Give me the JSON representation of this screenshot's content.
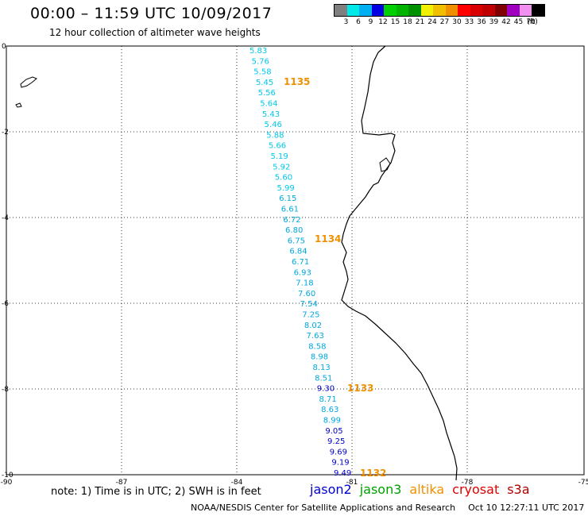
{
  "header": {
    "title": "00:00 – 11:59 UTC 10/09/2017",
    "subtitle": "12 hour collection of altimeter wave heights"
  },
  "legend": {
    "colors": [
      "#7f7f7f",
      "#00e8e8",
      "#00b0f0",
      "#0000e0",
      "#00d000",
      "#00b400",
      "#009000",
      "#f0f000",
      "#f0c000",
      "#f09000",
      "#ff0000",
      "#d80000",
      "#c00000",
      "#800000",
      "#a000c0",
      "#f090f0",
      "#000000"
    ],
    "labels": [
      "3",
      "6",
      "9",
      "12",
      "15",
      "18",
      "21",
      "24",
      "27",
      "30",
      "33",
      "36",
      "39",
      "42",
      "45",
      "70",
      "(ft)"
    ]
  },
  "map": {
    "x_tick_labels": [
      "-90",
      "-87",
      "-84",
      "-81",
      "-78",
      "-75"
    ],
    "y_tick_labels": [
      "0",
      "-2",
      "-4",
      "-6",
      "-8",
      "-10"
    ],
    "time_labels": [
      "1135",
      "1134",
      "1133",
      "1132"
    ],
    "time_label_color": "#f09000",
    "track_points": [
      {
        "v": "5.83",
        "c": "#00c8e8"
      },
      {
        "v": "5.76",
        "c": "#00c8e8"
      },
      {
        "v": "5.58",
        "c": "#00c8e8"
      },
      {
        "v": "5.45",
        "c": "#00c8e8"
      },
      {
        "v": "5.56",
        "c": "#00c8e8"
      },
      {
        "v": "5.64",
        "c": "#00c8e8"
      },
      {
        "v": "5.43",
        "c": "#00c8e8"
      },
      {
        "v": "5.46",
        "c": "#00c8e8"
      },
      {
        "v": "5.88",
        "c": "#00c8e8"
      },
      {
        "v": "5.66",
        "c": "#00c8e8"
      },
      {
        "v": "5.19",
        "c": "#00c8e8"
      },
      {
        "v": "5.92",
        "c": "#00c8e8"
      },
      {
        "v": "5.60",
        "c": "#00c8e8"
      },
      {
        "v": "5.99",
        "c": "#00c8e8"
      },
      {
        "v": "6.15",
        "c": "#00a8e0"
      },
      {
        "v": "6.61",
        "c": "#00a8e0"
      },
      {
        "v": "6.72",
        "c": "#00a8e0"
      },
      {
        "v": "6.80",
        "c": "#00a8e0"
      },
      {
        "v": "6.75",
        "c": "#00a8e0"
      },
      {
        "v": "6.84",
        "c": "#00a8e0"
      },
      {
        "v": "6.71",
        "c": "#00a8e0"
      },
      {
        "v": "6.93",
        "c": "#00a8e0"
      },
      {
        "v": "7.18",
        "c": "#00a8e0"
      },
      {
        "v": "7.60",
        "c": "#00a8e0"
      },
      {
        "v": "7.54",
        "c": "#00a8e0"
      },
      {
        "v": "7.25",
        "c": "#00a8e0"
      },
      {
        "v": "8.02",
        "c": "#00a8e0"
      },
      {
        "v": "7.63",
        "c": "#00a8e0"
      },
      {
        "v": "8.58",
        "c": "#00a8e0"
      },
      {
        "v": "8.98",
        "c": "#00a8e0"
      },
      {
        "v": "8.13",
        "c": "#00a8e0"
      },
      {
        "v": "8.51",
        "c": "#00a8e0"
      },
      {
        "v": "9.30",
        "c": "#0000c8"
      },
      {
        "v": "8.71",
        "c": "#00a8e0"
      },
      {
        "v": "8.63",
        "c": "#00a8e0"
      },
      {
        "v": "8.99",
        "c": "#00a8e0"
      },
      {
        "v": "9.05",
        "c": "#0000c8"
      },
      {
        "v": "9.25",
        "c": "#0000c8"
      },
      {
        "v": "9.69",
        "c": "#0000c8"
      },
      {
        "v": "9.19",
        "c": "#0000c8"
      },
      {
        "v": "9.49",
        "c": "#0000c8"
      }
    ]
  },
  "footer": {
    "note": "note: 1) Time is in UTC; 2) SWH is in feet",
    "satellites": [
      {
        "name": "jason2",
        "color": "#0000d0"
      },
      {
        "name": "jason3",
        "color": "#00a000"
      },
      {
        "name": "altika",
        "color": "#f09000"
      },
      {
        "name": "cryosat",
        "color": "#e00000"
      },
      {
        "name": "s3a",
        "color": "#b00000"
      }
    ],
    "credit": "NOAA/NESDIS Center for Satellite Applications and Research",
    "timestamp": "Oct 10 12:27:11 UTC 2017"
  }
}
